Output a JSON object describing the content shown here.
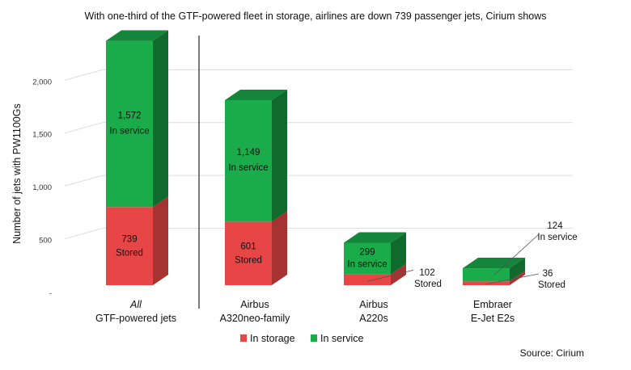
{
  "chart_data": {
    "type": "bar",
    "stacked": true,
    "style": "3d",
    "title": "With one-third of the GTF-powered fleet in storage, airlines are down 739 passenger jets, Cirium shows",
    "ylabel": "Number of jets with PW1100Gs",
    "ylim": [
      0,
      2300
    ],
    "yticks": [
      {
        "value": 0,
        "label": "-"
      },
      {
        "value": 500,
        "label": "500"
      },
      {
        "value": 1000,
        "label": "1,000"
      },
      {
        "value": 1500,
        "label": "1,500"
      },
      {
        "value": 2000,
        "label": "2,000"
      }
    ],
    "grid": true,
    "legend_position": "bottom",
    "source": "Source: Cirium",
    "categories": [
      {
        "line1": "All",
        "line2": "GTF-powered jets",
        "line1_italic": true
      },
      {
        "line1": "Airbus",
        "line2": "A320neo-family"
      },
      {
        "line1": "Airbus",
        "line2": "A220s"
      },
      {
        "line1": "Embraer",
        "line2": "E-Jet E2s"
      }
    ],
    "series": [
      {
        "name": "In storage",
        "color": "#e84646",
        "values": [
          739,
          601,
          102,
          36
        ],
        "value_labels": [
          "739",
          "601",
          "102",
          "36"
        ],
        "sub_label": "Stored"
      },
      {
        "name": "In service",
        "color": "#1aab4a",
        "values": [
          1572,
          1149,
          299,
          124
        ],
        "value_labels": [
          "1,572",
          "1,149",
          "299",
          "124"
        ],
        "sub_label": "In service"
      }
    ]
  }
}
